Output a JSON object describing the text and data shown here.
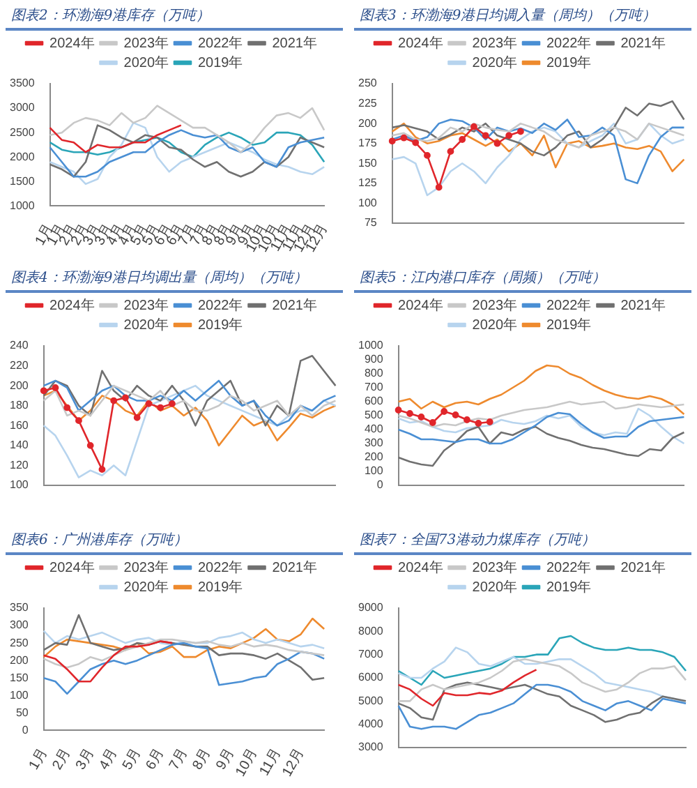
{
  "chart_data": [
    {
      "type": "line",
      "title": "图表2：环渤海9港库存（万吨）",
      "legend": "top",
      "marker": "none",
      "categories": [
        "1月",
        "1月",
        "2月",
        "2月",
        "3月",
        "3月",
        "4月",
        "4月",
        "5月",
        "5月",
        "6月",
        "6月",
        "7月",
        "7月",
        "8月",
        "8月",
        "9月",
        "9月",
        "10月",
        "10月",
        "11月",
        "11月",
        "12月",
        "12月"
      ],
      "ylim": [
        1000,
        3500
      ],
      "yticks": [
        1000,
        1500,
        2000,
        2500,
        3000,
        3500
      ],
      "series": [
        {
          "name": "2024年",
          "color": "#e0262b",
          "values": [
            2600,
            2350,
            2300,
            2100,
            2250,
            2200,
            2200,
            2300,
            2300,
            2450,
            2550,
            2650,
            null,
            null,
            null,
            null,
            null,
            null,
            null,
            null,
            null,
            null,
            null,
            null
          ]
        },
        {
          "name": "2023年",
          "color": "#c8c8c8",
          "values": [
            2450,
            2500,
            2700,
            2800,
            2750,
            2650,
            2900,
            2700,
            2800,
            3050,
            2900,
            2750,
            2600,
            2600,
            2450,
            2300,
            2100,
            2300,
            2600,
            2850,
            2900,
            2800,
            3000,
            2550
          ]
        },
        {
          "name": "2022年",
          "color": "#4a8fd4",
          "values": [
            2200,
            1900,
            1600,
            1600,
            1700,
            1900,
            2000,
            2100,
            2100,
            2300,
            2450,
            2550,
            2450,
            2400,
            2450,
            2200,
            2100,
            2200,
            1900,
            1800,
            2200,
            2300,
            2350,
            2400
          ]
        },
        {
          "name": "2021年",
          "color": "#707070",
          "values": [
            1850,
            1750,
            1600,
            1900,
            2650,
            2550,
            2400,
            2300,
            2450,
            2400,
            2200,
            2150,
            1950,
            1800,
            1900,
            1700,
            1600,
            1700,
            1900,
            1800,
            2000,
            2400,
            2300,
            2200
          ]
        },
        {
          "name": "2020年",
          "color": "#b7d4ee",
          "values": [
            1900,
            1800,
            1700,
            1450,
            1550,
            2000,
            2250,
            2700,
            2600,
            2000,
            1700,
            1900,
            2000,
            2100,
            2200,
            2300,
            2200,
            2100,
            1950,
            1850,
            1800,
            1700,
            1650,
            1800
          ]
        },
        {
          "name": "2019年",
          "color": "#2aa5b8",
          "values": [
            2300,
            2150,
            2100,
            2100,
            2050,
            2100,
            2200,
            2300,
            2350,
            2400,
            2300,
            2100,
            2000,
            2250,
            2400,
            2500,
            2400,
            2250,
            2300,
            2500,
            2500,
            2450,
            2250,
            1900
          ]
        }
      ]
    },
    {
      "type": "line",
      "title": "图表3：环渤海9港日均调入量（周均）（万吨）",
      "legend": "top",
      "marker": "none",
      "categories": [
        null,
        null,
        null,
        null,
        null,
        null,
        null,
        null,
        null,
        null,
        null,
        null,
        null,
        null,
        null,
        null,
        null,
        null,
        null,
        null,
        null,
        null,
        null,
        null,
        null,
        null
      ],
      "ylim": [
        75,
        250
      ],
      "yticks": [
        75,
        100,
        125,
        150,
        175,
        200,
        225,
        250
      ],
      "series": [
        {
          "name": "2024年",
          "color": "#e0262b",
          "marker": "circle",
          "values": [
            178,
            182,
            176,
            160,
            120,
            165,
            180,
            196,
            185,
            175,
            185,
            190,
            null,
            null,
            null,
            null,
            null,
            null,
            null,
            null,
            null,
            null,
            null,
            null,
            null,
            null
          ]
        },
        {
          "name": "2023年",
          "color": "#c8c8c8",
          "values": [
            185,
            188,
            180,
            178,
            182,
            195,
            190,
            200,
            195,
            192,
            190,
            200,
            195,
            190,
            180,
            175,
            170,
            185,
            190,
            195,
            190,
            180,
            200,
            195,
            190,
            185
          ]
        },
        {
          "name": "2022年",
          "color": "#4a8fd4",
          "values": [
            180,
            185,
            178,
            183,
            200,
            205,
            203,
            195,
            180,
            195,
            190,
            194,
            188,
            200,
            192,
            205,
            183,
            185,
            195,
            185,
            130,
            125,
            160,
            183,
            195,
            195
          ]
        },
        {
          "name": "2021年",
          "color": "#707070",
          "values": [
            195,
            198,
            194,
            190,
            180,
            186,
            195,
            190,
            200,
            185,
            180,
            175,
            165,
            160,
            170,
            185,
            190,
            170,
            180,
            195,
            220,
            210,
            225,
            222,
            228,
            205
          ]
        },
        {
          "name": "2020年",
          "color": "#b7d4ee",
          "values": [
            155,
            158,
            150,
            110,
            120,
            140,
            150,
            140,
            125,
            145,
            160,
            180,
            190,
            195,
            190,
            175,
            170,
            178,
            185,
            200,
            175,
            180,
            200,
            185,
            175,
            180
          ]
        },
        {
          "name": "2019年",
          "color": "#ee8a2e",
          "values": [
            190,
            200,
            183,
            175,
            178,
            185,
            188,
            180,
            172,
            180,
            165,
            175,
            160,
            185,
            145,
            175,
            178,
            170,
            172,
            175,
            170,
            168,
            172,
            165,
            140,
            155
          ]
        }
      ]
    },
    {
      "type": "line",
      "title": "图表4：环渤海9港日均调出量（周均）（万吨）",
      "legend": "top",
      "marker": "none",
      "categories": [
        null,
        null,
        null,
        null,
        null,
        null,
        null,
        null,
        null,
        null,
        null,
        null,
        null,
        null,
        null,
        null,
        null,
        null,
        null,
        null,
        null,
        null,
        null,
        null,
        null,
        null
      ],
      "ylim": [
        100,
        240
      ],
      "yticks": [
        100,
        120,
        140,
        160,
        180,
        200,
        220,
        240
      ],
      "series": [
        {
          "name": "2024年",
          "color": "#e0262b",
          "marker": "circle",
          "values": [
            195,
            198,
            178,
            165,
            140,
            116,
            185,
            188,
            168,
            182,
            178,
            182,
            null,
            null,
            null,
            null,
            null,
            null,
            null,
            null,
            null,
            null,
            null,
            null,
            null,
            null
          ]
        },
        {
          "name": "2023年",
          "color": "#c8c8c8",
          "values": [
            185,
            195,
            170,
            175,
            170,
            185,
            200,
            195,
            190,
            185,
            195,
            180,
            185,
            175,
            175,
            180,
            190,
            185,
            175,
            180,
            185,
            170,
            180,
            170,
            180,
            185
          ]
        },
        {
          "name": "2022年",
          "color": "#4a8fd4",
          "values": [
            200,
            205,
            198,
            175,
            185,
            195,
            200,
            190,
            185,
            185,
            190,
            185,
            195,
            185,
            195,
            205,
            190,
            180,
            185,
            170,
            160,
            165,
            180,
            175,
            185,
            190
          ]
        },
        {
          "name": "2021年",
          "color": "#707070",
          "values": [
            190,
            205,
            200,
            180,
            170,
            215,
            195,
            185,
            200,
            190,
            185,
            200,
            185,
            160,
            185,
            195,
            205,
            180,
            185,
            160,
            180,
            170,
            225,
            230,
            215,
            200
          ]
        },
        {
          "name": "2020年",
          "color": "#b7d4ee",
          "values": [
            160,
            150,
            130,
            108,
            115,
            110,
            120,
            110,
            145,
            180,
            185,
            190,
            195,
            200,
            190,
            185,
            180,
            175,
            170,
            165,
            160,
            170,
            175,
            175,
            185,
            180
          ]
        },
        {
          "name": "2019年",
          "color": "#ee8a2e",
          "values": [
            190,
            195,
            180,
            165,
            175,
            190,
            185,
            175,
            170,
            185,
            175,
            180,
            170,
            178,
            165,
            140,
            155,
            170,
            160,
            165,
            145,
            158,
            172,
            168,
            175,
            180
          ]
        }
      ]
    },
    {
      "type": "line",
      "title": "图表5：江内港口库存（周频）（万吨）",
      "legend": "top",
      "marker": "none",
      "categories": [
        null,
        null,
        null,
        null,
        null,
        null,
        null,
        null,
        null,
        null,
        null,
        null,
        null,
        null,
        null,
        null,
        null,
        null,
        null,
        null,
        null,
        null,
        null,
        null,
        null,
        null
      ],
      "ylim": [
        0,
        1000
      ],
      "yticks": [
        0,
        100,
        200,
        300,
        400,
        500,
        600,
        700,
        800,
        900,
        1000
      ],
      "series": [
        {
          "name": "2024年",
          "color": "#e0262b",
          "marker": "circle",
          "values": [
            540,
            515,
            490,
            450,
            530,
            505,
            470,
            445,
            455,
            null,
            null,
            null,
            null,
            null,
            null,
            null,
            null,
            null,
            null,
            null,
            null,
            null,
            null,
            null,
            null,
            null
          ]
        },
        {
          "name": "2023年",
          "color": "#c8c8c8",
          "values": [
            500,
            480,
            450,
            420,
            440,
            430,
            460,
            480,
            470,
            500,
            520,
            540,
            550,
            560,
            580,
            600,
            580,
            590,
            600,
            550,
            560,
            580,
            570,
            560,
            570,
            580
          ]
        },
        {
          "name": "2022年",
          "color": "#4a8fd4",
          "values": [
            400,
            370,
            330,
            330,
            320,
            310,
            330,
            330,
            300,
            300,
            330,
            380,
            430,
            490,
            520,
            510,
            440,
            380,
            340,
            350,
            350,
            420,
            460,
            470,
            480,
            490
          ]
        },
        {
          "name": "2021年",
          "color": "#707070",
          "values": [
            200,
            170,
            150,
            140,
            250,
            310,
            390,
            420,
            300,
            380,
            360,
            400,
            420,
            370,
            340,
            320,
            290,
            270,
            260,
            240,
            220,
            210,
            260,
            250,
            340,
            380
          ]
        },
        {
          "name": "2020年",
          "color": "#b7d4ee",
          "values": [
            480,
            450,
            460,
            420,
            390,
            380,
            410,
            420,
            430,
            470,
            450,
            440,
            460,
            500,
            480,
            500,
            420,
            380,
            360,
            380,
            370,
            550,
            500,
            420,
            350,
            300
          ]
        },
        {
          "name": "2019年",
          "color": "#ee8a2e",
          "values": [
            600,
            620,
            550,
            600,
            560,
            590,
            600,
            580,
            620,
            650,
            700,
            750,
            820,
            860,
            850,
            800,
            770,
            720,
            680,
            650,
            630,
            620,
            640,
            620,
            580,
            510
          ]
        }
      ]
    },
    {
      "type": "line",
      "title": "图表6：广州港库存（万吨）",
      "legend": "top",
      "marker": "none",
      "categories": [
        "1月",
        null,
        "2月",
        null,
        "3月",
        null,
        "4月",
        null,
        "5月",
        null,
        "6月",
        null,
        "7月",
        null,
        "8月",
        null,
        "9月",
        null,
        "10月",
        null,
        "11月",
        null,
        "12月",
        null,
        null
      ],
      "ylim": [
        0,
        350
      ],
      "yticks": [
        0,
        50,
        100,
        150,
        200,
        250,
        300,
        350
      ],
      "series": [
        {
          "name": "2024年",
          "color": "#e0262b",
          "values": [
            215,
            205,
            175,
            140,
            140,
            180,
            215,
            240,
            240,
            245,
            255,
            250,
            null,
            null,
            null,
            null,
            null,
            null,
            null,
            null,
            null,
            null,
            null,
            null,
            null
          ]
        },
        {
          "name": "2023年",
          "color": "#c8c8c8",
          "values": [
            205,
            190,
            180,
            190,
            210,
            200,
            215,
            230,
            240,
            250,
            260,
            260,
            255,
            250,
            255,
            245,
            240,
            250,
            240,
            245,
            240,
            230,
            225,
            220,
            215
          ]
        },
        {
          "name": "2022年",
          "color": "#4a8fd4",
          "values": [
            150,
            140,
            105,
            140,
            175,
            190,
            200,
            190,
            200,
            215,
            230,
            245,
            250,
            240,
            235,
            130,
            135,
            140,
            150,
            155,
            190,
            205,
            225,
            220,
            205
          ]
        },
        {
          "name": "2021年",
          "color": "#707070",
          "values": [
            230,
            250,
            245,
            330,
            250,
            240,
            230,
            235,
            250,
            245,
            255,
            250,
            245,
            240,
            240,
            215,
            220,
            220,
            215,
            205,
            220,
            200,
            180,
            145,
            150
          ]
        },
        {
          "name": "2020年",
          "color": "#b7d4ee",
          "values": [
            285,
            250,
            270,
            260,
            270,
            280,
            265,
            250,
            260,
            265,
            250,
            245,
            255,
            250,
            250,
            265,
            270,
            280,
            260,
            250,
            260,
            250,
            240,
            245,
            235
          ]
        },
        {
          "name": "2019年",
          "color": "#ee8a2e",
          "values": [
            210,
            240,
            260,
            255,
            250,
            245,
            240,
            230,
            250,
            220,
            225,
            240,
            210,
            210,
            230,
            240,
            235,
            250,
            265,
            290,
            260,
            255,
            275,
            320,
            290
          ]
        }
      ]
    },
    {
      "type": "line",
      "title": "图表7：全国73港动力煤库存（万吨）",
      "legend": "top",
      "marker": "none",
      "categories": [
        null,
        null,
        null,
        null,
        null,
        null,
        null,
        null,
        null,
        null,
        null,
        null,
        null,
        null,
        null,
        null,
        null,
        null,
        null,
        null,
        null,
        null,
        null,
        null,
        null,
        null
      ],
      "ylim": [
        3000,
        9000
      ],
      "yticks": [
        3000,
        4000,
        5000,
        6000,
        7000,
        8000,
        9000
      ],
      "series": [
        {
          "name": "2024年",
          "color": "#e0262b",
          "values": [
            5700,
            5500,
            5100,
            4800,
            5350,
            5250,
            5250,
            5350,
            5300,
            5450,
            5800,
            6100,
            6350,
            null,
            null,
            null,
            null,
            null,
            null,
            null,
            null,
            null,
            null,
            null,
            null,
            null
          ]
        },
        {
          "name": "2023年",
          "color": "#c8c8c8",
          "values": [
            5000,
            5000,
            5500,
            5700,
            5500,
            5600,
            5700,
            5800,
            6000,
            6300,
            6700,
            6800,
            6700,
            6600,
            6500,
            6200,
            5800,
            5600,
            5400,
            5500,
            5800,
            6200,
            6400,
            6400,
            6500,
            5900
          ]
        },
        {
          "name": "2022年",
          "color": "#4a8fd4",
          "values": [
            4800,
            3900,
            3800,
            3900,
            3900,
            3800,
            4100,
            4400,
            4500,
            4700,
            4900,
            5300,
            5700,
            5700,
            5600,
            5400,
            5000,
            4800,
            4600,
            4900,
            5000,
            4800,
            4600,
            5100,
            5000,
            4900
          ]
        },
        {
          "name": "2021年",
          "color": "#707070",
          "values": [
            4900,
            4700,
            4300,
            4200,
            5500,
            5700,
            5800,
            5700,
            5600,
            5500,
            5600,
            5700,
            5500,
            5300,
            5200,
            4800,
            4600,
            4400,
            4100,
            4200,
            4400,
            4500,
            4900,
            5200,
            5100,
            5000
          ]
        },
        {
          "name": "2020年",
          "color": "#b7d4ee",
          "values": [
            6200,
            6000,
            6000,
            6400,
            6700,
            7300,
            7100,
            6600,
            6500,
            6700,
            6900,
            6600,
            6600,
            6700,
            6800,
            6800,
            6500,
            6200,
            5800,
            5700,
            5600,
            5500,
            5400,
            5200,
            5100,
            4900
          ]
        },
        {
          "name": "2019年",
          "color": "#2aa5b8",
          "values": [
            6300,
            6000,
            5700,
            6300,
            6000,
            6100,
            6200,
            6300,
            6400,
            6600,
            6900,
            6900,
            7000,
            7000,
            7700,
            7800,
            7500,
            7300,
            7200,
            7200,
            7300,
            7200,
            7200,
            7100,
            6900,
            6300
          ]
        }
      ]
    }
  ]
}
